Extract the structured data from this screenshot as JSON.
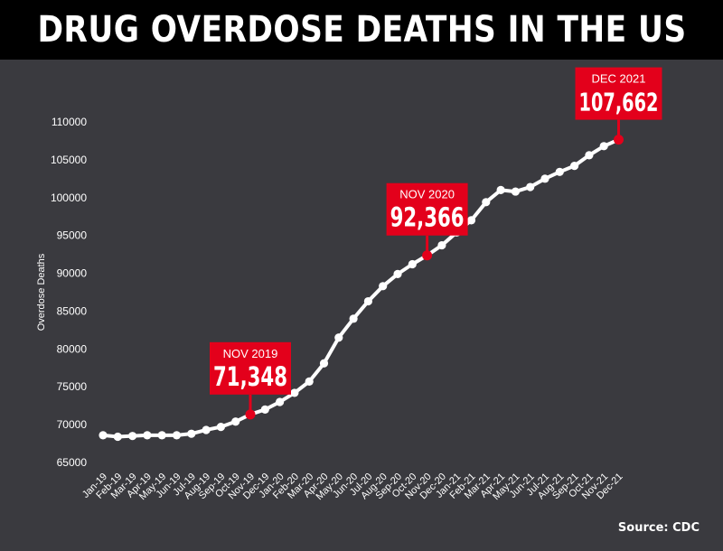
{
  "header": {
    "title": "DRUG OVERDOSE DEATHS IN THE US"
  },
  "source": "Source: CDC",
  "colors": {
    "background": "#3a3a3f",
    "title_bar": "#000000",
    "line": "#ffffff",
    "callout": "#e3001b",
    "marker": "#e3001b",
    "text": "#ffffff"
  },
  "chart_data": {
    "type": "line",
    "title": "",
    "xlabel": "",
    "ylabel": "Overdose Deaths",
    "ylim": [
      65000,
      110000
    ],
    "yticks": [
      65000,
      70000,
      75000,
      80000,
      85000,
      90000,
      95000,
      100000,
      105000,
      110000
    ],
    "grid": false,
    "categories": [
      "Jan-19",
      "Feb-19",
      "Mar-19",
      "Apr-19",
      "May-19",
      "Jun-19",
      "Jul-19",
      "Aug-19",
      "Sep-19",
      "Oct-19",
      "Nov-19",
      "Dec-19",
      "Jan-20",
      "Feb-20",
      "Mar-20",
      "Apr-20",
      "May-20",
      "Jun-20",
      "Jul-20",
      "Aug-20",
      "Sep-20",
      "Oct-20",
      "Nov-20",
      "Dec-20",
      "Jan-21",
      "Feb-21",
      "Mar-21",
      "Apr-21",
      "May-21",
      "Jun-21",
      "Jul-21",
      "Aug-21",
      "Sep-21",
      "Oct-21",
      "Nov-21",
      "Dec-21"
    ],
    "values": [
      68600,
      68400,
      68500,
      68600,
      68600,
      68600,
      68800,
      69300,
      69700,
      70400,
      71348,
      72000,
      73000,
      74200,
      75700,
      78100,
      81500,
      84000,
      86300,
      88300,
      89900,
      91200,
      92366,
      93700,
      95400,
      97000,
      99400,
      101000,
      100800,
      101400,
      102500,
      103400,
      104200,
      105600,
      106800,
      107662
    ],
    "annotations": [
      {
        "index": 10,
        "label": "NOV 2019",
        "value_text": "71,348"
      },
      {
        "index": 22,
        "label": "NOV 2020",
        "value_text": "92,366"
      },
      {
        "index": 35,
        "label": "DEC 2021",
        "value_text": "107,662"
      }
    ]
  }
}
